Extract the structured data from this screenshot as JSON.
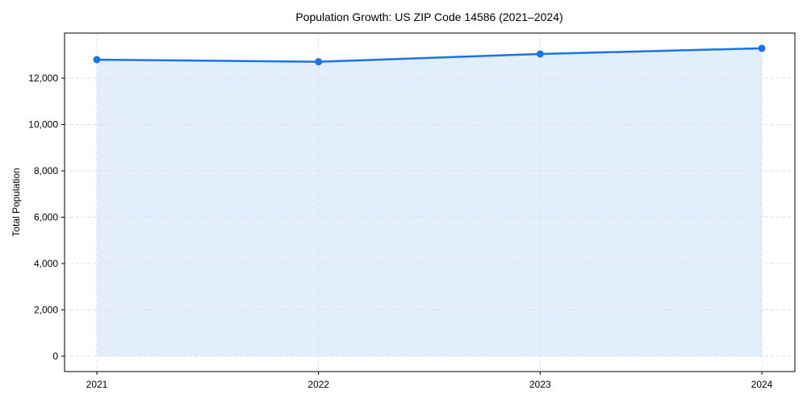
{
  "chart_data": {
    "type": "line",
    "title": "Population Growth: US ZIP Code 14586 (2021–2024)",
    "xlabel": "",
    "ylabel": "Total Population",
    "categories": [
      "2021",
      "2022",
      "2023",
      "2024"
    ],
    "series": [
      {
        "name": "Total Population",
        "values": [
          12800,
          12710,
          13045,
          13290
        ]
      }
    ],
    "yticks": [
      0,
      2000,
      4000,
      6000,
      8000,
      10000,
      12000
    ],
    "ytick_labels": [
      "0",
      "2,000",
      "4,000",
      "6,000",
      "8,000",
      "10,000",
      "12,000"
    ],
    "ylim": [
      -650,
      13950
    ],
    "grid": true,
    "fill_under": true,
    "legend": null,
    "colors": {
      "line": "#1a73e8",
      "fill": "#e3eefc",
      "grid": "#dddddd",
      "axis": "#000000"
    }
  }
}
